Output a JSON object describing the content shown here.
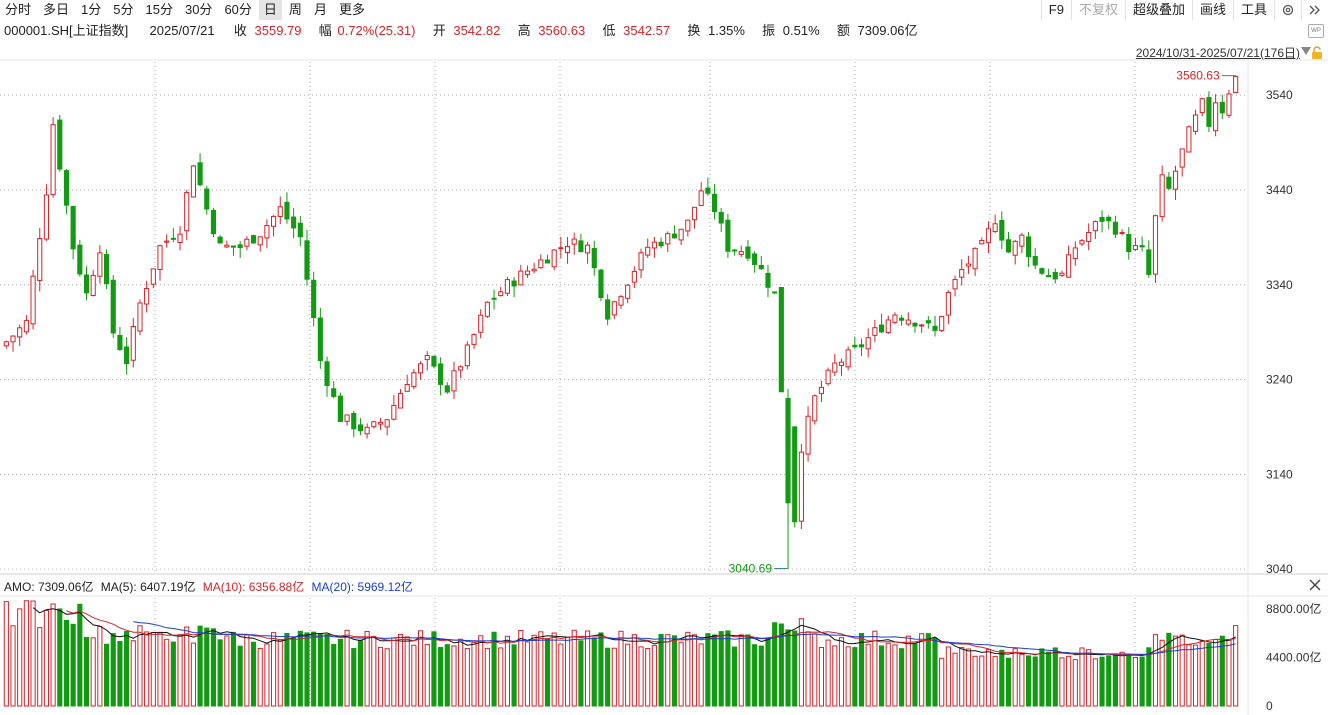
{
  "toolbar": {
    "timeframes": [
      "分时",
      "多日",
      "1分",
      "5分",
      "15分",
      "30分",
      "60分",
      "日",
      "周",
      "月",
      "更多"
    ],
    "active_timeframe": "日",
    "tools": [
      "F9",
      "不复权",
      "超级叠加",
      "画线",
      "工具"
    ],
    "dim_tool": "不复权",
    "icons": [
      "gear-icon",
      "double-chevron-right-icon"
    ]
  },
  "info": {
    "symbol": "000001.SH[上证指数]",
    "date": "2025/07/21",
    "close_label": "收",
    "close": "3559.79",
    "change_label": "幅",
    "change": "0.72%(25.31)",
    "open_label": "开",
    "open": "3542.82",
    "high_label": "高",
    "high": "3560.63",
    "low_label": "低",
    "low": "3542.57",
    "turnover_label": "换",
    "turnover": "1.35%",
    "amplitude_label": "振",
    "amplitude": "0.51%",
    "amount_label": "额",
    "amount": "7309.06亿"
  },
  "range_label": "2024/10/31-2025/07/21(176日)",
  "wp_label": "WP",
  "amo": {
    "amo": "AMO: 7309.06亿",
    "ma5": "MA(5): 6407.19亿",
    "ma10": "MA(10): 6356.88亿",
    "ma20": "MA(20): 5969.12亿"
  },
  "colors": {
    "up": "#d3262c",
    "down": "#139a13",
    "ma5": "#111111",
    "ma10": "#d3262c",
    "ma20": "#1a3fcf",
    "grid": "#aaaaaa"
  },
  "chart_data": [
    {
      "type": "candlestick",
      "x_range": [
        "2024/10/31",
        "2025/07/21"
      ],
      "num_days": 176,
      "y_ticks": [
        3040,
        3140,
        3240,
        3340,
        3440,
        3540
      ],
      "ylim": [
        3037,
        3575
      ],
      "annotations": [
        {
          "label": "3560.63",
          "kind": "high"
        },
        {
          "label": "3040.69",
          "kind": "low"
        }
      ],
      "anchors": [
        [
          0,
          3280
        ],
        [
          3,
          3300
        ],
        [
          6,
          3440
        ],
        [
          7,
          3510
        ],
        [
          10,
          3380
        ],
        [
          12,
          3330
        ],
        [
          14,
          3380
        ],
        [
          16,
          3290
        ],
        [
          18,
          3260
        ],
        [
          20,
          3320
        ],
        [
          23,
          3380
        ],
        [
          26,
          3400
        ],
        [
          28,
          3470
        ],
        [
          30,
          3420
        ],
        [
          32,
          3380
        ],
        [
          35,
          3380
        ],
        [
          38,
          3395
        ],
        [
          41,
          3420
        ],
        [
          44,
          3390
        ],
        [
          47,
          3260
        ],
        [
          50,
          3200
        ],
        [
          54,
          3185
        ],
        [
          57,
          3200
        ],
        [
          60,
          3240
        ],
        [
          63,
          3260
        ],
        [
          66,
          3230
        ],
        [
          69,
          3270
        ],
        [
          72,
          3320
        ],
        [
          75,
          3340
        ],
        [
          78,
          3355
        ],
        [
          81,
          3370
        ],
        [
          84,
          3385
        ],
        [
          87,
          3380
        ],
        [
          90,
          3310
        ],
        [
          93,
          3345
        ],
        [
          96,
          3380
        ],
        [
          99,
          3390
        ],
        [
          102,
          3405
        ],
        [
          104,
          3440
        ],
        [
          106,
          3420
        ],
        [
          108,
          3380
        ],
        [
          111,
          3375
        ],
        [
          113,
          3355
        ],
        [
          115,
          3330
        ],
        [
          117,
          3130
        ],
        [
          118,
          3080
        ],
        [
          119,
          3170
        ],
        [
          121,
          3220
        ],
        [
          124,
          3255
        ],
        [
          127,
          3270
        ],
        [
          130,
          3290
        ],
        [
          133,
          3310
        ],
        [
          135,
          3305
        ],
        [
          137,
          3300
        ],
        [
          139,
          3290
        ],
        [
          141,
          3330
        ],
        [
          143,
          3355
        ],
        [
          146,
          3380
        ],
        [
          148,
          3410
        ],
        [
          150,
          3375
        ],
        [
          152,
          3390
        ],
        [
          154,
          3360
        ],
        [
          156,
          3350
        ],
        [
          158,
          3350
        ],
        [
          160,
          3380
        ],
        [
          162,
          3395
        ],
        [
          164,
          3410
        ],
        [
          166,
          3400
        ],
        [
          168,
          3380
        ],
        [
          170,
          3375
        ],
        [
          171,
          3350
        ],
        [
          172,
          3410
        ],
        [
          173,
          3450
        ],
        [
          174,
          3440
        ],
        [
          175,
          3460
        ],
        [
          176,
          3480
        ],
        [
          177,
          3500
        ],
        [
          178,
          3515
        ],
        [
          179,
          3530
        ],
        [
          180,
          3510
        ],
        [
          181,
          3535
        ],
        [
          182,
          3525
        ],
        [
          183,
          3545
        ],
        [
          184,
          3559.79
        ]
      ]
    },
    {
      "type": "bar",
      "name": "AMO",
      "y_ticks": [
        "0",
        "4400.00亿",
        "8800.00亿"
      ],
      "ylim": [
        0,
        10000
      ],
      "last_value": 7309.06
    }
  ]
}
